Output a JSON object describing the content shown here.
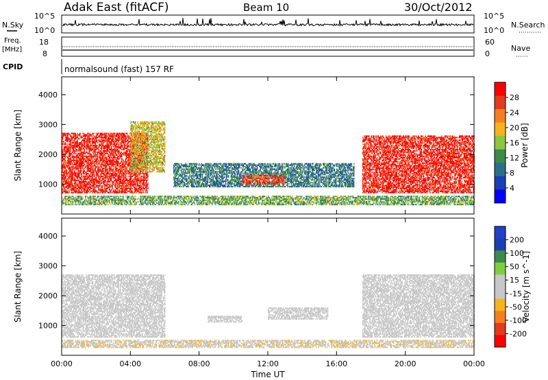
{
  "header": {
    "station": "Adak East (fitACF)",
    "beam": "Beam 10",
    "date": "30/Oct/2012"
  },
  "noise_panel": {
    "left_label": "N.Sky",
    "right_label": "N.Search",
    "left_ticks": [
      "10^5",
      "10^0"
    ],
    "right_ticks": [
      "10^5",
      "10^0"
    ]
  },
  "freq_panel": {
    "left_label_1": "Freq.",
    "left_label_2": "[MHz]",
    "right_label": "Nave",
    "left_ticks": [
      "18",
      "8"
    ],
    "right_ticks": [
      "60",
      "0"
    ]
  },
  "cpid_panel": {
    "label": "CPID",
    "program": "normalsound (fast) 157 RF"
  },
  "colors": {
    "power_scale": [
      "#0000ff",
      "#1a3fb5",
      "#2c6e8a",
      "#3d8a4a",
      "#8dc63f",
      "#f7b31b",
      "#f57f20",
      "#e33b1e",
      "#ff0000"
    ],
    "velocity_scale": [
      "#ff0000",
      "#e33b1e",
      "#f57f20",
      "#f7b31b",
      "#c8c8c8",
      "#c8c8c8",
      "#7ecf3e",
      "#3d8a4a",
      "#1a3fb5",
      "#2040c8"
    ],
    "ground_scatter": "#c8c8c8"
  },
  "chart_data": [
    {
      "type": "heatmap",
      "quantity": "power",
      "ylabel": "Slant Range [km]",
      "yticks": [
        "1000",
        "2000",
        "3000",
        "4000"
      ],
      "ylim": [
        0,
        4600
      ],
      "colorbar_label": "Power [dB]",
      "colorbar_ticks": [
        "4",
        "8",
        "12",
        "16",
        "20",
        "24",
        "28"
      ],
      "clim": [
        0,
        32
      ],
      "regions": [
        {
          "t0": 0.0,
          "t1": 5.0,
          "r0": 700,
          "r1": 2700,
          "value": 29
        },
        {
          "t0": 4.0,
          "t1": 6.0,
          "r0": 1400,
          "r1": 3100,
          "value": 18
        },
        {
          "t0": 6.5,
          "t1": 17.0,
          "r0": 900,
          "r1": 1700,
          "value": 10
        },
        {
          "t0": 10.5,
          "t1": 13.0,
          "r0": 1000,
          "r1": 1300,
          "value": 26
        },
        {
          "t0": 17.5,
          "t1": 24.0,
          "r0": 700,
          "r1": 2600,
          "value": 29
        },
        {
          "t0": 0.0,
          "t1": 24.0,
          "r0": 300,
          "r1": 600,
          "value": 14
        }
      ]
    },
    {
      "type": "heatmap",
      "quantity": "velocity",
      "ylabel": "Slant Range [km]",
      "yticks": [
        "1000",
        "2000",
        "3000",
        "4000"
      ],
      "ylim": [
        0,
        4600
      ],
      "colorbar_label": "Velocity [m s^-1]",
      "colorbar_ticks": [
        "200",
        "100",
        "50",
        "15",
        "-15",
        "-50",
        "-100",
        "-200"
      ],
      "clim": [
        -250,
        250
      ],
      "xlabel": "Time UT",
      "xticks": [
        "00:00",
        "04:00",
        "08:00",
        "12:00",
        "16:00",
        "20:00",
        "00:00"
      ],
      "xlim": [
        0,
        24
      ],
      "regions": [
        {
          "t0": 0.0,
          "t1": 6.0,
          "r0": 600,
          "r1": 2700,
          "value": 0
        },
        {
          "t0": 8.5,
          "t1": 10.5,
          "r0": 1100,
          "r1": 1300,
          "value": 30
        },
        {
          "t0": 12.0,
          "t1": 15.5,
          "r0": 1200,
          "r1": 1600,
          "value": -30
        },
        {
          "t0": 17.5,
          "t1": 24.0,
          "r0": 600,
          "r1": 2700,
          "value": 0
        },
        {
          "t0": 0.0,
          "t1": 24.0,
          "r0": 250,
          "r1": 500,
          "value": -40
        }
      ]
    }
  ]
}
